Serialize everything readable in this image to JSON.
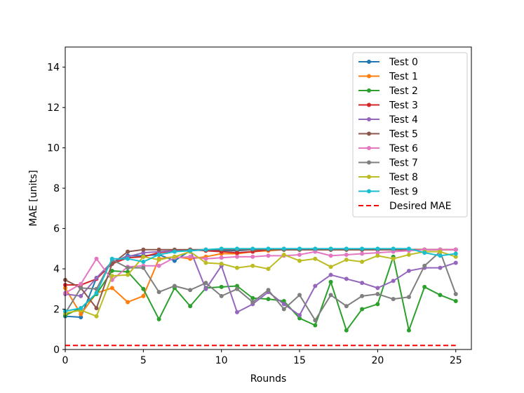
{
  "chart_data": {
    "type": "line",
    "title": "",
    "xlabel": "Rounds",
    "ylabel": "MAE [units]",
    "xlim": [
      0,
      26
    ],
    "ylim": [
      0,
      15
    ],
    "xticks": [
      0,
      5,
      10,
      15,
      20,
      25
    ],
    "yticks": [
      0,
      2,
      4,
      6,
      8,
      10,
      12,
      14
    ],
    "grid": false,
    "legend_position": "top-right",
    "x": [
      0,
      1,
      2,
      3,
      4,
      5,
      6,
      7,
      8,
      9,
      10,
      11,
      12,
      13,
      14,
      15,
      16,
      17,
      18,
      19,
      20,
      21,
      22,
      23,
      24,
      25
    ],
    "series": [
      {
        "name": "Test 0",
        "color": "#1f77b4",
        "values": [
          1.65,
          1.6,
          3.55,
          4.3,
          4.65,
          4.65,
          4.7,
          4.4,
          4.9,
          4.95,
          4.9,
          4.9,
          4.95,
          4.95,
          4.95,
          4.95,
          4.95,
          4.95,
          4.95,
          4.95,
          4.95,
          4.95,
          4.95,
          4.95,
          4.95,
          4.95
        ]
      },
      {
        "name": "Test 1",
        "color": "#ff7f0e",
        "values": [
          3.05,
          1.75,
          2.8,
          3.05,
          2.35,
          2.65,
          4.5,
          4.6,
          4.5,
          4.6,
          4.75,
          4.75,
          4.85,
          4.9,
          4.95,
          4.95,
          4.95,
          4.95,
          4.95,
          4.95,
          4.95,
          4.95,
          4.95,
          4.95,
          4.95,
          4.95
        ]
      },
      {
        "name": "Test 2",
        "color": "#2ca02c",
        "values": [
          1.7,
          2.05,
          2.75,
          3.9,
          3.85,
          3.0,
          1.5,
          3.05,
          2.15,
          3.05,
          3.1,
          3.15,
          2.55,
          2.5,
          2.4,
          1.55,
          1.2,
          3.35,
          0.95,
          2.0,
          2.25,
          4.6,
          0.95,
          3.1,
          2.7,
          2.4
        ]
      },
      {
        "name": "Test 3",
        "color": "#d62728",
        "values": [
          3.2,
          3.2,
          3.5,
          4.25,
          4.55,
          4.6,
          4.8,
          4.9,
          4.95,
          4.9,
          4.85,
          4.8,
          4.85,
          4.95,
          4.95,
          4.95,
          4.95,
          4.95,
          4.95,
          4.95,
          4.95,
          4.95,
          4.95,
          4.95,
          4.95,
          4.95
        ]
      },
      {
        "name": "Test 4",
        "color": "#9467bd",
        "values": [
          2.75,
          2.65,
          3.55,
          4.35,
          4.6,
          4.8,
          4.85,
          4.9,
          4.95,
          3.0,
          4.15,
          1.85,
          2.25,
          2.85,
          2.25,
          1.7,
          3.15,
          3.7,
          3.5,
          3.3,
          3.05,
          3.4,
          3.9,
          4.05,
          4.05,
          4.3
        ]
      },
      {
        "name": "Test 5",
        "color": "#8c564b",
        "values": [
          3.45,
          3.05,
          2.05,
          4.25,
          4.85,
          4.95,
          4.95,
          4.95,
          4.95,
          4.95,
          4.95,
          4.95,
          4.95,
          4.95,
          4.95,
          4.95,
          4.95,
          4.95,
          4.95,
          4.95,
          4.95,
          4.95,
          4.95,
          4.95,
          4.95,
          4.95
        ]
      },
      {
        "name": "Test 6",
        "color": "#e377c2",
        "values": [
          2.8,
          3.25,
          4.5,
          3.45,
          4.1,
          4.15,
          4.15,
          4.55,
          4.6,
          4.5,
          4.55,
          4.6,
          4.6,
          4.65,
          4.65,
          4.7,
          4.85,
          4.65,
          4.7,
          4.75,
          4.8,
          4.85,
          4.9,
          4.95,
          4.95,
          4.95
        ]
      },
      {
        "name": "Test 7",
        "color": "#7f7f7f",
        "values": [
          1.8,
          3.05,
          3.0,
          4.45,
          4.05,
          4.05,
          2.85,
          3.15,
          2.95,
          3.3,
          2.65,
          3.0,
          2.35,
          2.95,
          2.0,
          2.7,
          1.45,
          2.7,
          2.15,
          2.65,
          2.75,
          2.5,
          2.6,
          4.15,
          4.85,
          2.75
        ]
      },
      {
        "name": "Test 8",
        "color": "#bcbd22",
        "values": [
          1.8,
          1.95,
          1.65,
          3.65,
          3.7,
          4.6,
          4.45,
          4.6,
          4.85,
          4.3,
          4.25,
          4.05,
          4.15,
          4.0,
          4.7,
          4.4,
          4.5,
          4.1,
          4.45,
          4.35,
          4.65,
          4.5,
          4.7,
          4.85,
          4.85,
          4.6
        ]
      },
      {
        "name": "Test 9",
        "color": "#17becf",
        "values": [
          1.9,
          2.05,
          2.8,
          4.5,
          4.5,
          4.35,
          4.7,
          4.85,
          4.9,
          4.95,
          5.0,
          5.0,
          5.0,
          5.0,
          5.0,
          5.0,
          5.0,
          5.0,
          5.0,
          5.0,
          5.0,
          5.0,
          5.0,
          4.8,
          4.65,
          4.75
        ]
      }
    ],
    "reference_line": {
      "name": "Desired MAE",
      "color": "#ff0000",
      "value": 0.2,
      "x_range": [
        0,
        25
      ],
      "style": "dashed"
    }
  }
}
